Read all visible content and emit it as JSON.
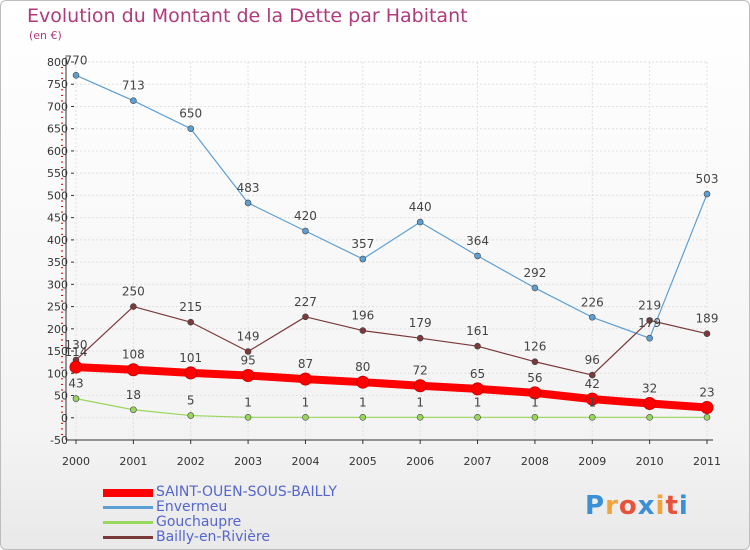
{
  "header": {
    "title": "Evolution du Montant de la Dette par Habitant",
    "subtitle": "(en €)"
  },
  "logo": {
    "text": "Proxiti",
    "colors": [
      "#3a8fd6",
      "#f2a33a",
      "#e8523a",
      "#3a8fd6",
      "#f2a33a",
      "#e8523a",
      "#3a8fd6"
    ]
  },
  "chart_data": {
    "type": "line",
    "x": [
      "2000",
      "2001",
      "2002",
      "2003",
      "2004",
      "2005",
      "2006",
      "2007",
      "2008",
      "2009",
      "2010",
      "2011"
    ],
    "ylim": [
      -50,
      800
    ],
    "yticks": [
      "800",
      "750",
      "700",
      "650",
      "600",
      "550",
      "500",
      "450",
      "400",
      "350",
      "300",
      "250",
      "200",
      "150",
      "100",
      "50",
      "0",
      "-50"
    ],
    "ytick_values": [
      800,
      750,
      700,
      650,
      600,
      550,
      500,
      450,
      400,
      350,
      300,
      250,
      200,
      150,
      100,
      50,
      0,
      -50
    ],
    "grid": true,
    "legend_position": "bottom-left",
    "series": [
      {
        "name": "SAINT-OUEN-SOUS-BAILLY",
        "color": "#ff0000",
        "values": [
          114,
          108,
          101,
          95,
          87,
          80,
          72,
          65,
          56,
          42,
          32,
          23
        ],
        "labels": [
          "114",
          "108",
          "101",
          "95",
          "87",
          "80",
          "72",
          "65",
          "56",
          "42",
          "32",
          "23"
        ]
      },
      {
        "name": "Envermeu",
        "color": "#5d9fd2",
        "values": [
          770,
          713,
          650,
          483,
          420,
          357,
          440,
          364,
          292,
          226,
          179,
          503
        ],
        "labels": [
          "770",
          "713",
          "650",
          "483",
          "420",
          "357",
          "440",
          "364",
          "292",
          "226",
          "179",
          "503"
        ]
      },
      {
        "name": "Gouchaupre",
        "color": "#99d65c",
        "values": [
          43,
          18,
          5,
          1,
          1,
          1,
          1,
          1,
          1,
          1,
          1,
          1
        ],
        "labels": [
          "43",
          "18",
          "5",
          "1",
          "1",
          "1",
          "1",
          "1",
          "1",
          "1",
          "",
          ""
        ]
      },
      {
        "name": "Bailly-en-Rivière",
        "color": "#7a3a3a",
        "values": [
          130,
          250,
          215,
          149,
          227,
          196,
          179,
          161,
          126,
          96,
          219,
          189
        ],
        "labels": [
          "130",
          "250",
          "215",
          "149",
          "227",
          "196",
          "179",
          "161",
          "126",
          "96",
          "219",
          "189"
        ]
      }
    ]
  }
}
